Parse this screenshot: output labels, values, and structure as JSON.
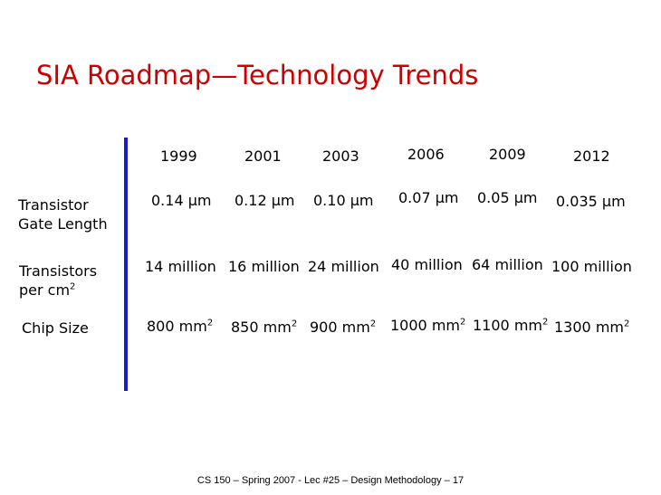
{
  "slide": {
    "title": "SIA Roadmap—Technology Trends",
    "footer": "CS 150 – Spring 2007 - Lec #25 – Design Methodology – 17",
    "colors": {
      "title": "#cc0000",
      "divider": "#1a1acc"
    }
  },
  "table": {
    "years": [
      "1999",
      "2001",
      "2003",
      "2006",
      "2009",
      "2012"
    ],
    "gate_length": {
      "label_line1": "Transistor",
      "label_line2": "Gate Length",
      "unit": "μm",
      "values": [
        "0.14",
        "0.12",
        "0.10",
        "0.07",
        "0.05",
        "0.035"
      ]
    },
    "transistors": {
      "label_line1": "Transistors",
      "label_line2": "per cm",
      "label_sup": "2",
      "values": [
        "14 million",
        "16 million",
        "24 million",
        "40 million",
        "64 million",
        "100 million"
      ]
    },
    "chip_size": {
      "label": "Chip Size",
      "unit": "mm",
      "unit_sup": "2",
      "values": [
        "800",
        "850",
        "900",
        "1000",
        "1100",
        "1300"
      ]
    }
  }
}
